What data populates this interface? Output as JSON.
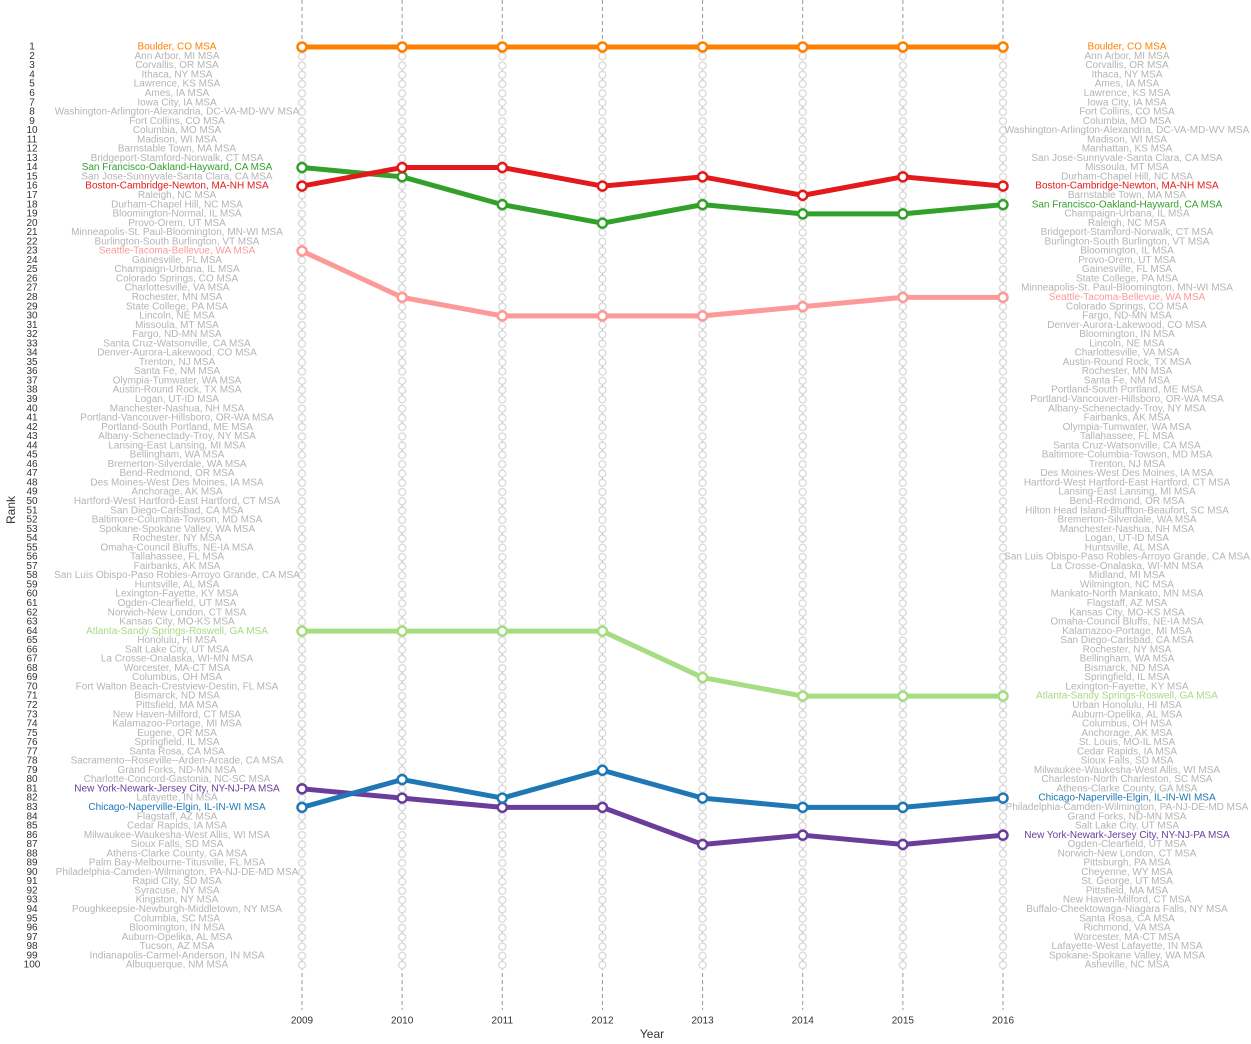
{
  "chart_data": {
    "type": "line",
    "x_label": "Year",
    "y_label": "Rank",
    "x": [
      2009,
      2010,
      2011,
      2012,
      2013,
      2014,
      2015,
      2016
    ],
    "ylim": [
      1,
      100
    ],
    "yticks": [
      1,
      2,
      3,
      4,
      5,
      6,
      7,
      8,
      9,
      10,
      11,
      12,
      13,
      14,
      15,
      16,
      17,
      18,
      19,
      20,
      21,
      22,
      23,
      24,
      25,
      26,
      27,
      28,
      29,
      30,
      31,
      32,
      33,
      34,
      35,
      36,
      37,
      38,
      39,
      40,
      41,
      42,
      43,
      44,
      45,
      46,
      47,
      48,
      49,
      50,
      51,
      52,
      53,
      54,
      55,
      56,
      57,
      58,
      59,
      60,
      61,
      62,
      63,
      64,
      65,
      66,
      67,
      68,
      69,
      70,
      71,
      72,
      73,
      74,
      75,
      76,
      77,
      78,
      79,
      80,
      81,
      82,
      83,
      84,
      85,
      86,
      87,
      88,
      89,
      90,
      91,
      92,
      93,
      94,
      95,
      96,
      97,
      98,
      99,
      100
    ],
    "y_reversed": true,
    "left_labels": [
      "Boulder, CO MSA",
      "Ann Arbor, MI MSA",
      "Corvallis, OR MSA",
      "Ithaca, NY MSA",
      "Lawrence, KS MSA",
      "Ames, IA MSA",
      "Iowa City, IA MSA",
      "Washington-Arlington-Alexandria, DC-VA-MD-WV MSA",
      "Fort Collins, CO MSA",
      "Columbia, MO MSA",
      "Madison, WI MSA",
      "Barnstable Town, MA MSA",
      "Bridgeport-Stamford-Norwalk, CT MSA",
      "San Francisco-Oakland-Hayward, CA MSA",
      "San Jose-Sunnyvale-Santa Clara, CA MSA",
      "Boston-Cambridge-Newton, MA-NH MSA",
      "Raleigh, NC MSA",
      "Durham-Chapel Hill, NC MSA",
      "Bloomington-Normal, IL MSA",
      "Provo-Orem, UT MSA",
      "Minneapolis-St. Paul-Bloomington, MN-WI MSA",
      "Burlington-South Burlington, VT MSA",
      "Seattle-Tacoma-Bellevue, WA MSA",
      "Gainesville, FL MSA",
      "Champaign-Urbana, IL MSA",
      "Colorado Springs, CO MSA",
      "Charlottesville, VA MSA",
      "Rochester, MN MSA",
      "State College, PA MSA",
      "Lincoln, NE MSA",
      "Missoula, MT MSA",
      "Fargo, ND-MN MSA",
      "Santa Cruz-Watsonville, CA MSA",
      "Denver-Aurora-Lakewood, CO MSA",
      "Trenton, NJ MSA",
      "Santa Fe, NM MSA",
      "Olympia-Tumwater, WA MSA",
      "Austin-Round Rock, TX MSA",
      "Logan, UT-ID MSA",
      "Manchester-Nashua, NH MSA",
      "Portland-Vancouver-Hillsboro, OR-WA MSA",
      "Portland-South Portland, ME MSA",
      "Albany-Schenectady-Troy, NY MSA",
      "Lansing-East Lansing, MI MSA",
      "Bellingham, WA MSA",
      "Bremerton-Silverdale, WA MSA",
      "Bend-Redmond, OR MSA",
      "Des Moines-West Des Moines, IA MSA",
      "Anchorage, AK MSA",
      "Hartford-West Hartford-East Hartford, CT MSA",
      "San Diego-Carlsbad, CA MSA",
      "Baltimore-Columbia-Towson, MD MSA",
      "Spokane-Spokane Valley, WA MSA",
      "Rochester, NY MSA",
      "Omaha-Council Bluffs, NE-IA MSA",
      "Tallahassee, FL MSA",
      "Fairbanks, AK MSA",
      "San Luis Obispo-Paso Robles-Arroyo Grande, CA MSA",
      "Huntsville, AL MSA",
      "Lexington-Fayette, KY MSA",
      "Ogden-Clearfield, UT MSA",
      "Norwich-New London, CT MSA",
      "Kansas City, MO-KS MSA",
      "Atlanta-Sandy Springs-Roswell, GA MSA",
      "Honolulu, HI MSA",
      "Salt Lake City, UT MSA",
      "La Crosse-Onalaska, WI-MN MSA",
      "Worcester, MA-CT MSA",
      "Columbus, OH MSA",
      "Fort Walton Beach-Crestview-Destin, FL MSA",
      "Bismarck, ND MSA",
      "Pittsfield, MA MSA",
      "New Haven-Milford, CT MSA",
      "Kalamazoo-Portage, MI MSA",
      "Eugene, OR MSA",
      "Springfield, IL MSA",
      "Santa Rosa, CA MSA",
      "Sacramento--Roseville--Arden-Arcade, CA MSA",
      "Grand Forks, ND-MN MSA",
      "Charlotte-Concord-Gastonia, NC-SC MSA",
      "New York-Newark-Jersey City, NY-NJ-PA MSA",
      "Lafayette, IN MSA",
      "Chicago-Naperville-Elgin, IL-IN-WI MSA",
      "Flagstaff, AZ MSA",
      "Cedar Rapids, IA MSA",
      "Milwaukee-Waukesha-West Allis, WI MSA",
      "Sioux Falls, SD MSA",
      "Athens-Clarke County, GA MSA",
      "Palm Bay-Melbourne-Titusville, FL MSA",
      "Philadelphia-Camden-Wilmington, PA-NJ-DE-MD MSA",
      "Rapid City, SD MSA",
      "Syracuse, NY MSA",
      "Kingston, NY MSA",
      "Poughkeepsie-Newburgh-Middletown, NY MSA",
      "Columbia, SC MSA",
      "Bloomington, IN MSA",
      "Auburn-Opelika, AL MSA",
      "Tucson, AZ MSA",
      "Indianapolis-Carmel-Anderson, IN MSA",
      "Albuquerque, NM MSA"
    ],
    "right_labels": [
      "Boulder, CO MSA",
      "Ann Arbor, MI MSA",
      "Corvallis, OR MSA",
      "Ithaca, NY MSA",
      "Ames, IA MSA",
      "Lawrence, KS MSA",
      "Iowa City, IA MSA",
      "Fort Collins, CO MSA",
      "Columbia, MO MSA",
      "Washington-Arlington-Alexandria, DC-VA-MD-WV MSA",
      "Madison, WI MSA",
      "Manhattan, KS MSA",
      "San Jose-Sunnyvale-Santa Clara, CA MSA",
      "Missoula, MT MSA",
      "Durham-Chapel Hill, NC MSA",
      "Boston-Cambridge-Newton, MA-NH MSA",
      "Barnstable Town, MA MSA",
      "San Francisco-Oakland-Hayward, CA MSA",
      "Champaign-Urbana, IL MSA",
      "Raleigh, NC MSA",
      "Bridgeport-Stamford-Norwalk, CT MSA",
      "Burlington-South Burlington, VT MSA",
      "Bloomington, IL MSA",
      "Provo-Orem, UT MSA",
      "Gainesville, FL MSA",
      "State College, PA MSA",
      "Minneapolis-St. Paul-Bloomington, MN-WI MSA",
      "Seattle-Tacoma-Bellevue, WA MSA",
      "Colorado Springs, CO MSA",
      "Fargo, ND-MN MSA",
      "Denver-Aurora-Lakewood, CO MSA",
      "Bloomington, IN MSA",
      "Lincoln, NE MSA",
      "Charlottesville, VA MSA",
      "Austin-Round Rock, TX MSA",
      "Rochester, MN MSA",
      "Santa Fe, NM MSA",
      "Portland-South Portland, ME MSA",
      "Portland-Vancouver-Hillsboro, OR-WA MSA",
      "Albany-Schenectady-Troy, NY MSA",
      "Fairbanks, AK MSA",
      "Olympia-Tumwater, WA MSA",
      "Tallahassee, FL MSA",
      "Santa Cruz-Watsonville, CA MSA",
      "Baltimore-Columbia-Towson, MD MSA",
      "Trenton, NJ MSA",
      "Des Moines-West Des Moines, IA MSA",
      "Hartford-West Hartford-East Hartford, CT MSA",
      "Lansing-East Lansing, MI MSA",
      "Bend-Redmond, OR MSA",
      "Hilton Head Island-Bluffton-Beaufort, SC MSA",
      "Bremerton-Silverdale, WA MSA",
      "Manchester-Nashua, NH MSA",
      "Logan, UT-ID MSA",
      "Huntsville, AL MSA",
      "San Luis Obispo-Paso Robles-Arroyo Grande, CA MSA",
      "La Crosse-Onalaska, WI-MN MSA",
      "Midland, MI MSA",
      "Wilmington, NC MSA",
      "Mankato-North Mankato, MN MSA",
      "Flagstaff, AZ MSA",
      "Kansas City, MO-KS MSA",
      "Omaha-Council Bluffs, NE-IA MSA",
      "Kalamazoo-Portage, MI MSA",
      "San Diego-Carlsbad, CA MSA",
      "Rochester, NY MSA",
      "Bellingham, WA MSA",
      "Bismarck, ND MSA",
      "Springfield, IL MSA",
      "Lexington-Fayette, KY MSA",
      "Atlanta-Sandy Springs-Roswell, GA MSA",
      "Urban Honolulu, HI MSA",
      "Auburn-Opelika, AL MSA",
      "Columbus, OH MSA",
      "Anchorage, AK MSA",
      "St. Louis, MO-IL MSA",
      "Cedar Rapids, IA MSA",
      "Sioux Falls, SD MSA",
      "Milwaukee-Waukesha-West Allis, WI MSA",
      "Charleston-North Charleston, SC MSA",
      "Athens-Clarke County, GA MSA",
      "Chicago-Naperville-Elgin, IL-IN-WI MSA",
      "Philadelphia-Camden-Wilmington, PA-NJ-DE-MD MSA",
      "Grand Forks, ND-MN MSA",
      "Salt Lake City, UT MSA",
      "New York-Newark-Jersey City, NY-NJ-PA MSA",
      "Ogden-Clearfield, UT MSA",
      "Norwich-New London, CT MSA",
      "Pittsburgh, PA MSA",
      "Cheyenne, WY MSA",
      "St. George, UT MSA",
      "Pittsfield, MA MSA",
      "New Haven-Milford, CT MSA",
      "Buffalo-Cheektowaga-Niagara Falls, NY MSA",
      "Santa Rosa, CA MSA",
      "Richmond, VA MSA",
      "Worcester, MA-CT MSA",
      "Lafayette-West Lafayette, IN MSA",
      "Spokane-Spokane Valley, WA MSA",
      "Asheville, NC MSA"
    ],
    "series": [
      {
        "name": "Atlanta-Sandy Springs-Roswell, GA MSA",
        "color": "#a6dc82",
        "values": [
          64,
          64,
          64,
          64,
          69,
          71,
          71,
          71
        ]
      },
      {
        "name": "Seattle-Tacoma-Bellevue, WA MSA",
        "color": "#fb9a99",
        "values": [
          23,
          28,
          30,
          30,
          30,
          29,
          28,
          28
        ]
      },
      {
        "name": "New York-Newark-Jersey City, NY-NJ-PA MSA",
        "color": "#6a3d9a",
        "values": [
          81,
          82,
          83,
          83,
          87,
          86,
          87,
          86
        ]
      },
      {
        "name": "Chicago-Naperville-Elgin, IL-IN-WI MSA",
        "color": "#1f78b4",
        "values": [
          83,
          80,
          82,
          79,
          82,
          83,
          83,
          82
        ]
      },
      {
        "name": "San Francisco-Oakland-Hayward, CA MSA",
        "color": "#33a02c",
        "values": [
          14,
          15,
          18,
          20,
          18,
          19,
          19,
          18
        ]
      },
      {
        "name": "Boston-Cambridge-Newton, MA-NH MSA",
        "color": "#e31a1c",
        "values": [
          16,
          14,
          14,
          16,
          15,
          17,
          15,
          16
        ]
      },
      {
        "name": "Boulder, CO MSA",
        "color": "#ff7f00",
        "values": [
          1,
          1,
          1,
          1,
          1,
          1,
          1,
          1
        ]
      }
    ]
  }
}
